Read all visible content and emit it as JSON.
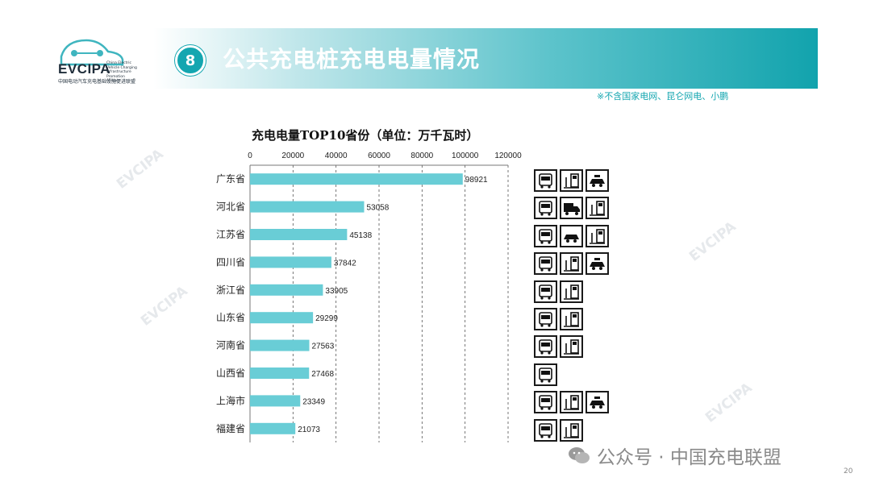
{
  "header": {
    "logo_text": "EVCIPA",
    "logo_subtitle": "中国电动汽车充电基础设施促进联盟",
    "logo_english": "China Electric Vehicle Charging Infrastructure Promotion Alliance",
    "section_number": "8",
    "title": "公共充电桩充电电量情况",
    "note": "※不含国家电网、昆仑网电、小鹏"
  },
  "watermark_text": "EVCIPA",
  "footer": {
    "wechat": "公众号 · 中国充电联盟",
    "page_number": "20"
  },
  "colors": {
    "bar": "#69cdd6",
    "accent": "#14a6b0"
  },
  "chart_data": {
    "type": "bar",
    "orientation": "horizontal",
    "title": "充电电量TOP10省份（单位：万千瓦时）",
    "categories": [
      "广东省",
      "河北省",
      "江苏省",
      "四川省",
      "浙江省",
      "山东省",
      "河南省",
      "山西省",
      "上海市",
      "福建省"
    ],
    "values": [
      98921,
      53058,
      45138,
      37842,
      33905,
      29299,
      27563,
      27468,
      23349,
      21073
    ],
    "xlim": [
      0,
      120000
    ],
    "xticks": [
      0,
      20000,
      40000,
      60000,
      80000,
      100000,
      120000
    ],
    "grid": "vertical-dashed",
    "xaxis_position": "top"
  },
  "vehicle_icons": [
    [
      "bus-icon",
      "charging-pile-icon",
      "taxi-icon"
    ],
    [
      "bus-icon",
      "truck-icon",
      "charging-pile-icon"
    ],
    [
      "bus-icon",
      "car-icon",
      "charging-pile-icon"
    ],
    [
      "bus-icon",
      "charging-pile-icon",
      "taxi-icon"
    ],
    [
      "bus-icon",
      "charging-pile-icon"
    ],
    [
      "bus-icon",
      "charging-pile-icon"
    ],
    [
      "bus-icon",
      "charging-pile-icon"
    ],
    [
      "bus-icon"
    ],
    [
      "bus-icon",
      "charging-pile-icon",
      "taxi-icon"
    ],
    [
      "bus-icon",
      "charging-pile-icon"
    ]
  ]
}
